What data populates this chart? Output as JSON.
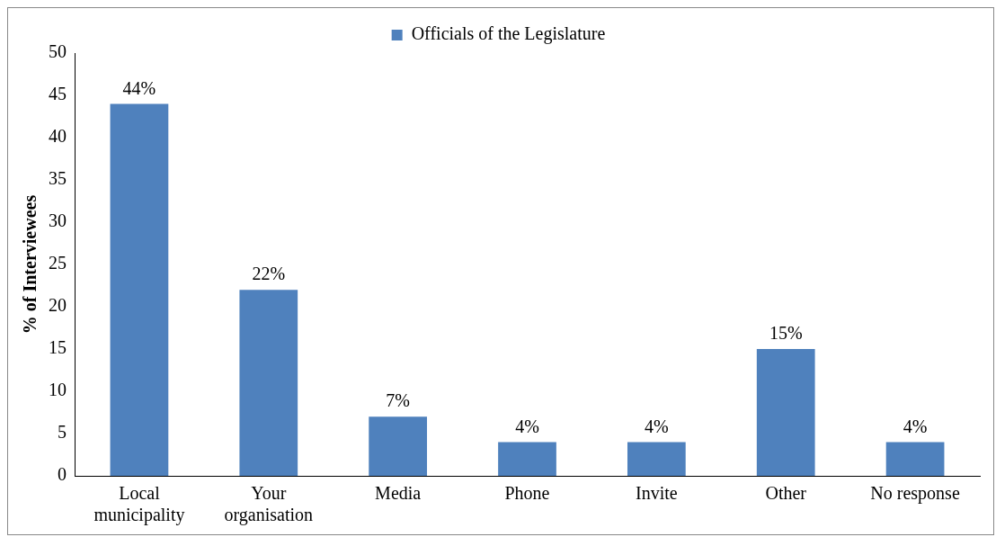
{
  "chart_data": {
    "type": "bar",
    "ylabel": "% of Interviewees",
    "categories": [
      "Local municipality",
      "Your organisation",
      "Media",
      "Phone",
      "Invite",
      "Other",
      "No response"
    ],
    "series": [
      {
        "name": "Officials of the Legislature",
        "color": "#4f81bd",
        "values": [
          44,
          22,
          7,
          4,
          4,
          15,
          4
        ],
        "value_labels": [
          "44%",
          "22%",
          "7%",
          "4%",
          "4%",
          "15%",
          "4%"
        ]
      }
    ],
    "ylim": [
      0,
      50
    ],
    "yticks": [
      0,
      5,
      10,
      15,
      20,
      25,
      30,
      35,
      40,
      45,
      50
    ],
    "grid": false,
    "legend": "top"
  }
}
